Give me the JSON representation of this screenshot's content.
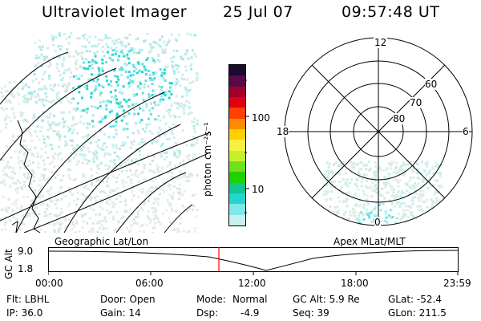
{
  "header": {
    "title": "Ultraviolet Imager",
    "date": "25 Jul 07",
    "time": "09:57:48 UT"
  },
  "colorbar": {
    "unit_label": "photon cm⁻²s⁻¹",
    "ticks": [
      "100",
      "10"
    ],
    "colors": [
      "#1a0a30",
      "#5a0a48",
      "#a00030",
      "#e00010",
      "#ff4000",
      "#ff8c00",
      "#ffd000",
      "#f8f040",
      "#c8f028",
      "#70e020",
      "#20d000",
      "#10c890",
      "#20d8d0",
      "#80e8e8",
      "#c8f0f0"
    ]
  },
  "polar_plot": {
    "mlt_labels": {
      "top": "12",
      "left": "18",
      "right": "6",
      "bottom": "0"
    },
    "lat_labels": [
      "60",
      "70",
      "80"
    ]
  },
  "timeline": {
    "left_label": "Geographic Lat/Lon",
    "right_label": "Apex MLat/MLT",
    "y_axis_label": "GC Alt",
    "y_ticks": [
      "9.0",
      "1.8"
    ],
    "x_ticks": [
      "00:00",
      "06:00",
      "12:00",
      "18:00",
      "23:59"
    ],
    "marker_color": "#ff0000"
  },
  "info": {
    "filter": "Flt: LBHL",
    "door": "Door: Open",
    "mode_label": "Mode:",
    "mode_value": "Normal",
    "gc_alt": "GC Alt: 5.9 Re",
    "glat": "GLat: -52.4",
    "ip": "IP: 36.0",
    "gain": "Gain: 14",
    "dsp_label": "Dsp:",
    "dsp_value": "-4.9",
    "seq": "Seq: 39",
    "glon": "GLon: 211.5"
  }
}
